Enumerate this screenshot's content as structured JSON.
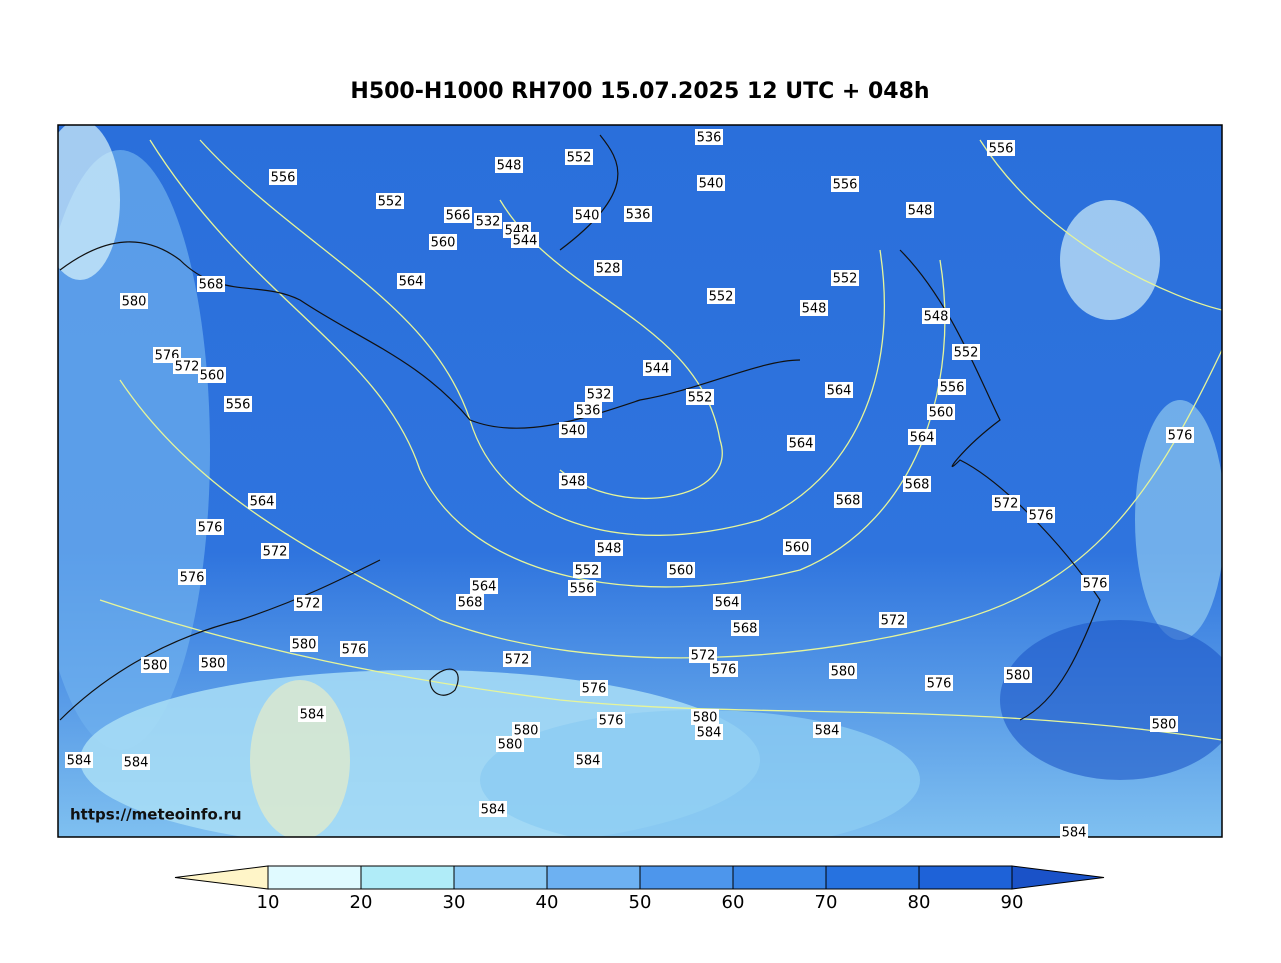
{
  "title": "H500-H1000 RH700 15.07.2025 12 UTC + 048h",
  "watermark": "https://meteoinfo.ru",
  "contour_labels": [
    "556",
    "552",
    "548",
    "552",
    "536",
    "540",
    "556",
    "556",
    "548",
    "566",
    "532",
    "548",
    "544",
    "540",
    "536",
    "560",
    "528",
    "564",
    "568",
    "580",
    "552",
    "552",
    "548",
    "548",
    "552",
    "556",
    "560",
    "564",
    "544",
    "532",
    "536",
    "552",
    "564",
    "564",
    "576",
    "572",
    "560",
    "556",
    "540",
    "548",
    "568",
    "568",
    "572",
    "576",
    "576",
    "564",
    "576",
    "572",
    "576",
    "572",
    "548",
    "552",
    "556",
    "560",
    "560",
    "564",
    "568",
    "564",
    "568",
    "572",
    "580",
    "576",
    "580",
    "580",
    "572",
    "572",
    "576",
    "580",
    "576",
    "576",
    "580",
    "576",
    "584",
    "576",
    "580",
    "580",
    "580",
    "584",
    "584",
    "580",
    "584",
    "584",
    "584",
    "584",
    "584"
  ],
  "colorbar": {
    "ticks": [
      10,
      20,
      30,
      40,
      50,
      60,
      70,
      80,
      90
    ],
    "colors": [
      "#fff5c8",
      "#e0faff",
      "#b0ecf8",
      "#8ccaf5",
      "#6db1f2",
      "#4d96ec",
      "#3784e6",
      "#2672e0",
      "#1e62d8",
      "#1a52c8"
    ]
  }
}
